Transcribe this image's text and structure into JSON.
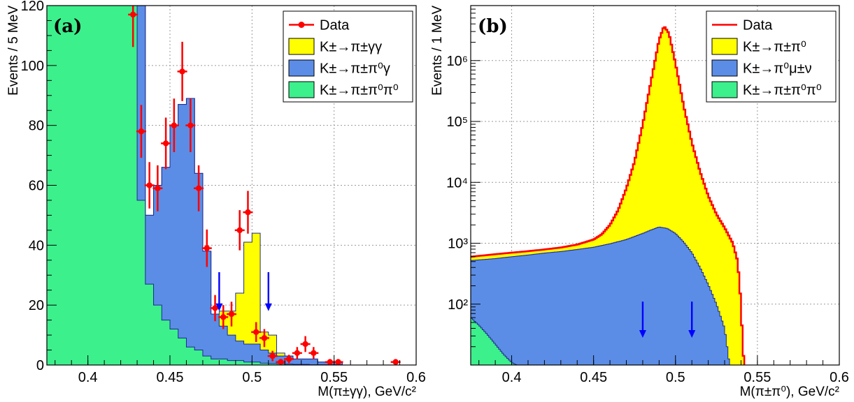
{
  "chart_data": [
    {
      "type": "histogram",
      "panel_label": "(a)",
      "xlabel": "M(π±γγ), GeV/c²",
      "ylabel": "Events / 5 MeV",
      "xlim": [
        0.375,
        0.6
      ],
      "ylim": [
        0,
        120
      ],
      "x_ticks": [
        "0.4",
        "0.45",
        "0.5",
        "0.55",
        "0.6"
      ],
      "y_ticks": [
        "0",
        "20",
        "40",
        "60",
        "80",
        "100",
        "120"
      ],
      "grid": true,
      "legend_position": "top-right",
      "bin_edges": [
        0.375,
        0.38,
        0.385,
        0.39,
        0.395,
        0.4,
        0.405,
        0.41,
        0.415,
        0.42,
        0.425,
        0.43,
        0.435,
        0.44,
        0.445,
        0.45,
        0.455,
        0.46,
        0.465,
        0.47,
        0.475,
        0.48,
        0.485,
        0.49,
        0.495,
        0.5,
        0.505,
        0.51,
        0.515,
        0.52,
        0.525,
        0.53,
        0.535,
        0.54,
        0.545,
        0.55,
        0.555,
        0.56,
        0.565,
        0.57,
        0.575,
        0.58,
        0.585,
        0.59,
        0.595,
        0.6
      ],
      "stacks": [
        {
          "name": "K±→π±π⁰π⁰",
          "color": "#3cf08c",
          "values": [
            130,
            130,
            130,
            130,
            130,
            130,
            130,
            130,
            130,
            130,
            130,
            55,
            27,
            20,
            15,
            12,
            9,
            6,
            5,
            3,
            2,
            2,
            1.5,
            1.5,
            1,
            1,
            0.6,
            0.5,
            0.4,
            0.3,
            0.2,
            0.2,
            0.1,
            0.1,
            0.1,
            0.1,
            0,
            0,
            0,
            0,
            0,
            0,
            0,
            0,
            0
          ]
        },
        {
          "name": "K±→π±π⁰γ",
          "color": "#5b8de6",
          "values": [
            130,
            130,
            130,
            130,
            130,
            130,
            130,
            130,
            130,
            130,
            130,
            120,
            50,
            60,
            66,
            80,
            87,
            89,
            64,
            38,
            17,
            13,
            10,
            8,
            7,
            7,
            5,
            4,
            3,
            3,
            2,
            2,
            2,
            1,
            1,
            1,
            0,
            0,
            0,
            0,
            0,
            0,
            0,
            0,
            0
          ]
        },
        {
          "name": "K±→π±γγ",
          "color": "#ffff00",
          "values": [
            130,
            130,
            130,
            130,
            130,
            130,
            130,
            130,
            130,
            130,
            130,
            120,
            50,
            60,
            66,
            80,
            87,
            89,
            64,
            38,
            17,
            18,
            18,
            24,
            41,
            44,
            11,
            10,
            4,
            3,
            2,
            2,
            2,
            1,
            1,
            1,
            0,
            0,
            0,
            0,
            0,
            0,
            0,
            0,
            0
          ]
        }
      ],
      "data_series": {
        "name": "Data",
        "color": "#ff0000",
        "points": [
          {
            "x": 0.4275,
            "y": 117
          },
          {
            "x": 0.4325,
            "y": 78
          },
          {
            "x": 0.4375,
            "y": 60
          },
          {
            "x": 0.4425,
            "y": 59
          },
          {
            "x": 0.4475,
            "y": 74
          },
          {
            "x": 0.4525,
            "y": 80
          },
          {
            "x": 0.4575,
            "y": 98
          },
          {
            "x": 0.4625,
            "y": 80
          },
          {
            "x": 0.4675,
            "y": 59
          },
          {
            "x": 0.4725,
            "y": 39
          },
          {
            "x": 0.4775,
            "y": 19
          },
          {
            "x": 0.4825,
            "y": 16
          },
          {
            "x": 0.4875,
            "y": 17
          },
          {
            "x": 0.4925,
            "y": 45
          },
          {
            "x": 0.4975,
            "y": 51
          },
          {
            "x": 0.5025,
            "y": 11
          },
          {
            "x": 0.5075,
            "y": 9
          },
          {
            "x": 0.5125,
            "y": 3
          },
          {
            "x": 0.5175,
            "y": 1
          },
          {
            "x": 0.5225,
            "y": 2
          },
          {
            "x": 0.5275,
            "y": 4
          },
          {
            "x": 0.5325,
            "y": 7
          },
          {
            "x": 0.5375,
            "y": 4
          },
          {
            "x": 0.5475,
            "y": 1
          },
          {
            "x": 0.5525,
            "y": 1
          },
          {
            "x": 0.5875,
            "y": 1
          }
        ]
      },
      "arrows_x": [
        0.48,
        0.51
      ]
    },
    {
      "type": "histogram",
      "panel_label": "(b)",
      "xlabel": "M(π±π⁰), GeV/c²",
      "ylabel": "Events / 1 MeV",
      "xlim": [
        0.375,
        0.6
      ],
      "ylim": [
        10,
        8000000
      ],
      "y_scale": "log",
      "x_ticks": [
        "0.4",
        "0.45",
        "0.5",
        "0.55",
        "0.6"
      ],
      "y_ticks": [
        "10²",
        "10³",
        "10⁴",
        "10⁵",
        "10⁶"
      ],
      "grid": true,
      "legend_position": "top-right",
      "stacks": [
        {
          "name": "K±→π±π⁰π⁰",
          "color": "#3cf08c",
          "points": [
            [
              0.375,
              60
            ],
            [
              0.38,
              45
            ],
            [
              0.385,
              32
            ],
            [
              0.39,
              22
            ],
            [
              0.395,
              15
            ],
            [
              0.4,
              11
            ],
            [
              0.403,
              10
            ]
          ]
        },
        {
          "name": "K±→π⁰μ±ν",
          "color": "#5b8de6",
          "points": [
            [
              0.375,
              520
            ],
            [
              0.39,
              560
            ],
            [
              0.4,
              600
            ],
            [
              0.41,
              640
            ],
            [
              0.42,
              690
            ],
            [
              0.43,
              730
            ],
            [
              0.44,
              790
            ],
            [
              0.45,
              860
            ],
            [
              0.46,
              980
            ],
            [
              0.47,
              1150
            ],
            [
              0.48,
              1450
            ],
            [
              0.485,
              1650
            ],
            [
              0.49,
              1850
            ],
            [
              0.495,
              1750
            ],
            [
              0.5,
              1450
            ],
            [
              0.505,
              1050
            ],
            [
              0.51,
              700
            ],
            [
              0.515,
              400
            ],
            [
              0.52,
              210
            ],
            [
              0.525,
              100
            ],
            [
              0.53,
              40
            ],
            [
              0.533,
              10
            ]
          ]
        },
        {
          "name": "K±→π±π⁰",
          "color": "#ffff00",
          "points": [
            [
              0.375,
              600
            ],
            [
              0.39,
              660
            ],
            [
              0.4,
              700
            ],
            [
              0.41,
              740
            ],
            [
              0.42,
              790
            ],
            [
              0.43,
              850
            ],
            [
              0.44,
              950
            ],
            [
              0.45,
              1150
            ],
            [
              0.455,
              1400
            ],
            [
              0.46,
              2000
            ],
            [
              0.465,
              3500
            ],
            [
              0.47,
              8000
            ],
            [
              0.475,
              22000
            ],
            [
              0.48,
              90000
            ],
            [
              0.485,
              450000
            ],
            [
              0.49,
              2200000
            ],
            [
              0.493,
              3700000
            ],
            [
              0.496,
              2800000
            ],
            [
              0.5,
              900000
            ],
            [
              0.505,
              180000
            ],
            [
              0.51,
              45000
            ],
            [
              0.515,
              15000
            ],
            [
              0.52,
              6000
            ],
            [
              0.525,
              3000
            ],
            [
              0.53,
              1800
            ],
            [
              0.535,
              1000
            ],
            [
              0.538,
              500
            ],
            [
              0.54,
              100
            ],
            [
              0.541,
              20
            ],
            [
              0.542,
              10
            ]
          ]
        }
      ],
      "data_series": {
        "name": "Data",
        "color": "#ff0000",
        "style": "line"
      },
      "arrows_x": [
        0.48,
        0.51
      ]
    }
  ]
}
